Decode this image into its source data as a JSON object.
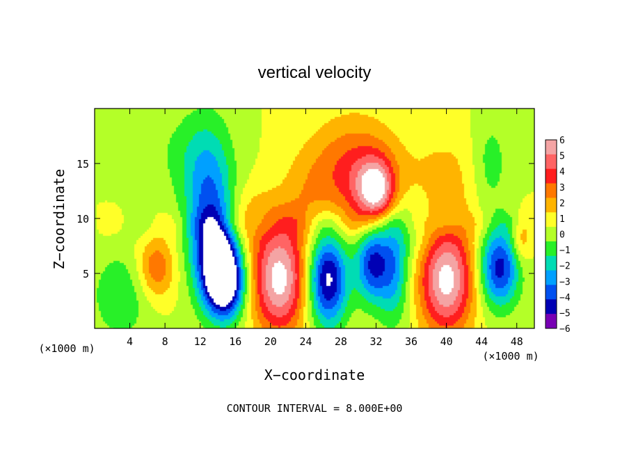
{
  "chart_data": {
    "type": "heatmap",
    "title": "vertical velocity",
    "xlabel": "X−coordinate",
    "ylabel": "Z−coordinate",
    "x_unit_left": "(×1000 m)",
    "x_unit_right": "(×1000 m)",
    "xlim": [
      0,
      50
    ],
    "ylim": [
      0,
      20
    ],
    "x_ticks": [
      4,
      8,
      12,
      16,
      20,
      24,
      28,
      32,
      36,
      40,
      44,
      48
    ],
    "y_ticks": [
      5,
      10,
      15
    ],
    "colorbar": {
      "min": -6,
      "max": 6,
      "ticks": [
        "6",
        "5",
        "4",
        "3",
        "2",
        "1",
        "0",
        "−1",
        "−2",
        "−3",
        "−4",
        "−5",
        "−6"
      ],
      "colors": [
        "#f4a4a4",
        "#ff6464",
        "#ff1e1e",
        "#ff7800",
        "#ffb400",
        "#ffff28",
        "#b4ff28",
        "#28f028",
        "#00dcb4",
        "#00a0ff",
        "#0050f0",
        "#0000b4",
        "#7800b4"
      ]
    },
    "footer": "CONTOUR INTERVAL = 8.000E+00",
    "features": [
      {
        "x": 29.5,
        "z": 14.0,
        "amp": 3.5,
        "sx": 3.5,
        "sz": 3.5
      },
      {
        "x": 32.0,
        "z": 12.5,
        "amp": 5.5,
        "sx": 1.5,
        "sz": 2.0
      },
      {
        "x": 13.0,
        "z": 11.0,
        "amp": -4.0,
        "sx": 2.0,
        "sz": 5.0
      },
      {
        "x": 14.0,
        "z": 6.5,
        "amp": -5.5,
        "sx": 1.6,
        "sz": 3.0
      },
      {
        "x": 15.0,
        "z": 4.0,
        "amp": -6.0,
        "sx": 1.5,
        "sz": 2.2
      },
      {
        "x": 7.0,
        "z": 5.5,
        "amp": 3.0,
        "sx": 1.5,
        "sz": 2.0
      },
      {
        "x": 21.0,
        "z": 4.5,
        "amp": 6.5,
        "sx": 2.2,
        "sz": 3.5
      },
      {
        "x": 26.5,
        "z": 4.5,
        "amp": -6.5,
        "sx": 1.6,
        "sz": 3.0
      },
      {
        "x": 31.5,
        "z": 6.0,
        "amp": -5.0,
        "sx": 1.3,
        "sz": 2.5
      },
      {
        "x": 34.0,
        "z": 5.5,
        "amp": -3.5,
        "sx": 1.3,
        "sz": 3.5
      },
      {
        "x": 40.0,
        "z": 4.5,
        "amp": 6.5,
        "sx": 2.2,
        "sz": 3.5
      },
      {
        "x": 46.0,
        "z": 5.5,
        "amp": -5.5,
        "sx": 1.6,
        "sz": 2.5
      },
      {
        "x": 17.0,
        "z": 10.0,
        "amp": 1.5,
        "sx": 3.0,
        "sz": 2.0
      },
      {
        "x": 40.0,
        "z": 14.0,
        "amp": 1.2,
        "sx": 3.0,
        "sz": 3.0
      },
      {
        "x": 3.0,
        "z": 3.0,
        "amp": -1.8,
        "sx": 2.5,
        "sz": 3.0
      },
      {
        "x": 45.0,
        "z": 15.0,
        "amp": -1.6,
        "sx": 1.5,
        "sz": 3.0
      },
      {
        "x": 10.0,
        "z": 16.0,
        "amp": -1.0,
        "sx": 3.0,
        "sz": 3.0
      },
      {
        "x": 24.0,
        "z": 12.0,
        "amp": 1.0,
        "sx": 2.0,
        "sz": 3.0
      },
      {
        "x": 36.5,
        "z": 9.0,
        "amp": -1.2,
        "sx": 2.0,
        "sz": 2.0
      },
      {
        "x": 48.5,
        "z": 8.0,
        "amp": 2.0,
        "sx": 0.8,
        "sz": 1.5
      }
    ]
  }
}
